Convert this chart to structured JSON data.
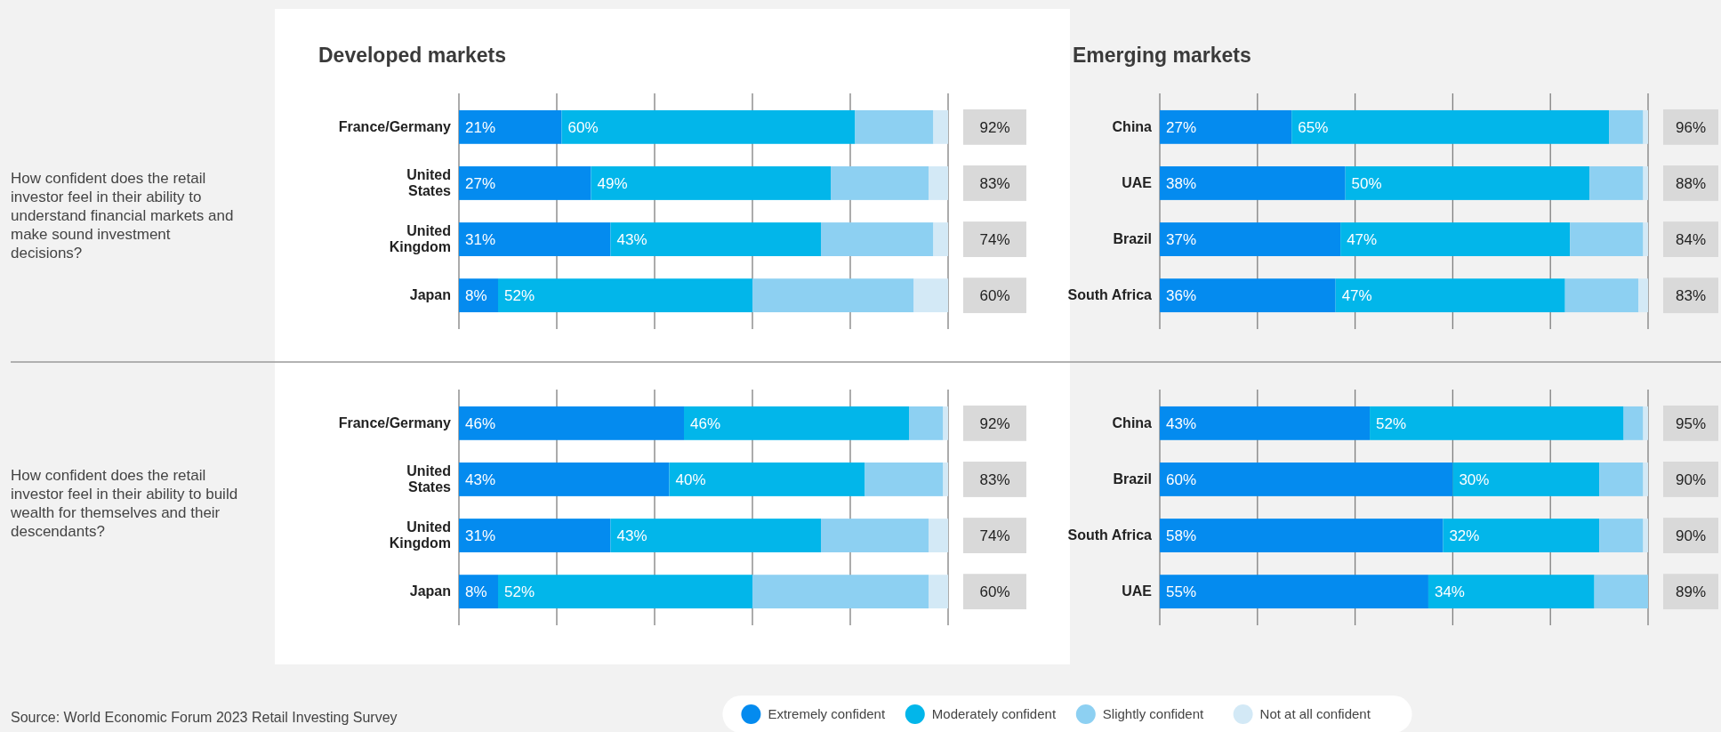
{
  "chart_data": [
    {
      "type": "bar",
      "orientation": "horizontal",
      "stacked": true,
      "title": "Developed markets",
      "ylabel": "How confident does the retail investor feel in their ability to understand financial markets and make sound investment decisions?",
      "categories": [
        "France/Germany",
        "United States",
        "United Kingdom",
        "Japan"
      ],
      "xlim": [
        0,
        100
      ],
      "xticks": [
        {
          "value": 0,
          "label": null
        },
        {
          "value": 20,
          "label": null
        },
        {
          "value": 40,
          "label": null
        },
        {
          "value": 60,
          "label": null
        },
        {
          "value": 80,
          "label": null
        },
        {
          "value": 100,
          "label": null
        }
      ],
      "grid": "x",
      "tick_labels": "y",
      "annotations": [
        "92%",
        "83%",
        "74%",
        "60%"
      ],
      "series": [
        {
          "color": "#048bef",
          "values": [
            21,
            27,
            31,
            8
          ],
          "value_labels": [
            "21%",
            "27%",
            "31%",
            "8%"
          ]
        },
        {
          "color": "#02b6ea",
          "values": [
            60,
            49,
            43,
            52
          ],
          "value_labels": [
            "60%",
            "49%",
            "43%",
            "52%"
          ]
        },
        {
          "color": "#8dd0f2",
          "values": [
            16,
            20,
            23,
            33
          ]
        },
        {
          "color": "#d3e9f6",
          "values": [
            3,
            4,
            3,
            7
          ]
        }
      ]
    },
    {
      "type": "bar",
      "orientation": "horizontal",
      "stacked": true,
      "title": "Emerging markets",
      "categories": [
        "China",
        "UAE",
        "Brazil",
        "South Africa"
      ],
      "xlim": [
        0,
        100
      ],
      "xticks": [
        {
          "value": 0,
          "label": null
        },
        {
          "value": 20,
          "label": null
        },
        {
          "value": 40,
          "label": null
        },
        {
          "value": 60,
          "label": null
        },
        {
          "value": 80,
          "label": null
        },
        {
          "value": 100,
          "label": null
        }
      ],
      "grid": "x",
      "tick_labels": "y",
      "annotations": [
        "96%",
        "88%",
        "84%",
        "83%"
      ],
      "series": [
        {
          "color": "#048bef",
          "values": [
            27,
            38,
            37,
            36
          ],
          "value_labels": [
            "27%",
            "38%",
            "37%",
            "36%"
          ]
        },
        {
          "color": "#02b6ea",
          "values": [
            65,
            50,
            47,
            47
          ],
          "value_labels": [
            "65%",
            "50%",
            "47%",
            "47%"
          ]
        },
        {
          "color": "#8dd0f2",
          "values": [
            7,
            11,
            15,
            15
          ]
        },
        {
          "color": "#d3e9f6",
          "values": [
            1,
            1,
            1,
            2
          ]
        }
      ]
    },
    {
      "type": "bar",
      "orientation": "horizontal",
      "stacked": true,
      "ylabel": "How confident does the retail investor feel in their ability to build wealth for themselves and their descendants?",
      "categories": [
        "France/Germany",
        "United States",
        "United Kingdom",
        "Japan"
      ],
      "xlim": [
        0,
        100
      ],
      "xticks": [
        {
          "value": 0,
          "label": null
        },
        {
          "value": 20,
          "label": null
        },
        {
          "value": 40,
          "label": null
        },
        {
          "value": 60,
          "label": null
        },
        {
          "value": 80,
          "label": null
        },
        {
          "value": 100,
          "label": null
        }
      ],
      "grid": "x",
      "tick_labels": "y",
      "annotations": [
        "92%",
        "83%",
        "74%",
        "60%",
        "Source: World Economic Forum 2023 Retail Investing Survey"
      ],
      "series": [
        {
          "color": "#048bef",
          "values": [
            46,
            43,
            31,
            8
          ],
          "value_labels": [
            "46%",
            "43%",
            "31%",
            "8%"
          ]
        },
        {
          "color": "#02b6ea",
          "values": [
            46,
            40,
            43,
            52
          ],
          "value_labels": [
            "46%",
            "40%",
            "43%",
            "52%"
          ]
        },
        {
          "color": "#8dd0f2",
          "values": [
            7,
            16,
            22,
            36
          ]
        },
        {
          "color": "#d3e9f6",
          "values": [
            1,
            1,
            4,
            4
          ]
        }
      ]
    },
    {
      "type": "bar",
      "orientation": "horizontal",
      "stacked": true,
      "categories": [
        "China",
        "Brazil",
        "South Africa",
        "UAE"
      ],
      "xlim": [
        0,
        100
      ],
      "xticks": [
        {
          "value": 0,
          "label": null
        },
        {
          "value": 20,
          "label": null
        },
        {
          "value": 40,
          "label": null
        },
        {
          "value": 60,
          "label": null
        },
        {
          "value": 80,
          "label": null
        },
        {
          "value": 100,
          "label": null
        }
      ],
      "grid": "x",
      "tick_labels": "y",
      "annotations": [
        "95%",
        "90%",
        "90%",
        "89%"
      ],
      "legend": "bottom",
      "series": [
        {
          "name": "Extremely confident",
          "color": "#048bef",
          "values": [
            43,
            60,
            58,
            55
          ],
          "value_labels": [
            "43%",
            "60%",
            "58%",
            "55%"
          ]
        },
        {
          "name": "Moderately confident",
          "color": "#02b6ea",
          "values": [
            52,
            30,
            32,
            34
          ],
          "value_labels": [
            "52%",
            "30%",
            "32%",
            "34%"
          ]
        },
        {
          "name": "Slightly confident",
          "color": "#8dd0f2",
          "values": [
            4,
            9,
            9,
            11
          ]
        },
        {
          "name": "Not at all confident",
          "color": "#d3e9f6",
          "values": [
            1,
            1,
            1,
            0
          ]
        }
      ]
    }
  ]
}
